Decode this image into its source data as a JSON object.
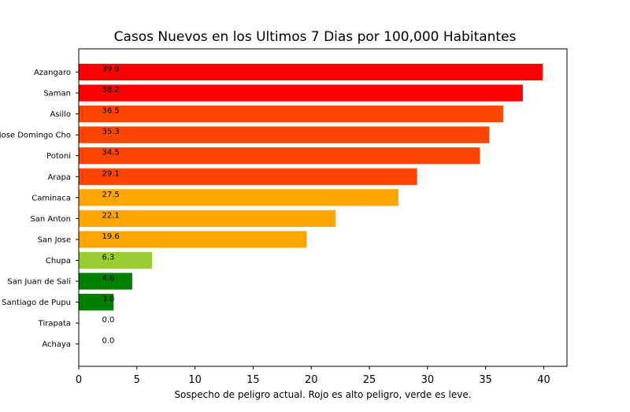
{
  "chart_data": {
    "type": "bar",
    "orientation": "horizontal",
    "title": "Casos Nuevos en los Ultimos 7 Dias por 100,000 Habitantes",
    "xlabel": "Sospecho de peligro actual. Rojo es alto peligro, verde es leve.",
    "ylabel": "",
    "xlim": [
      0,
      42
    ],
    "xticks": [
      0,
      5,
      10,
      15,
      20,
      25,
      30,
      35,
      40
    ],
    "grid": false,
    "categories": [
      "Azangaro",
      "Saman",
      "Asillo",
      "Jose Domingo Cho",
      "Potoni",
      "Arapa",
      "Caminaca",
      "San Anton",
      "San Jose",
      "Chupa",
      "San Juan de Sali",
      "Santiago de Pupu",
      "Tirapata",
      "Achaya"
    ],
    "values": [
      39.9,
      38.2,
      36.5,
      35.3,
      34.5,
      29.1,
      27.5,
      22.1,
      19.6,
      6.3,
      4.6,
      3.0,
      0.0,
      0.0
    ],
    "data_labels": [
      "39.9",
      "38.2",
      "36.5",
      "35.3",
      "34.5",
      "29.1",
      "27.5",
      "22.1",
      "19.6",
      "6.3",
      "4.6",
      "3.0",
      "0.0",
      "0.0"
    ],
    "colors": [
      "#ff0000",
      "#ff0000",
      "#ff4500",
      "#ff4500",
      "#ff4500",
      "#ff4500",
      "#ffa500",
      "#ffa500",
      "#ffa500",
      "#9acd32",
      "#008000",
      "#008000",
      "#008000",
      "#008000"
    ]
  }
}
